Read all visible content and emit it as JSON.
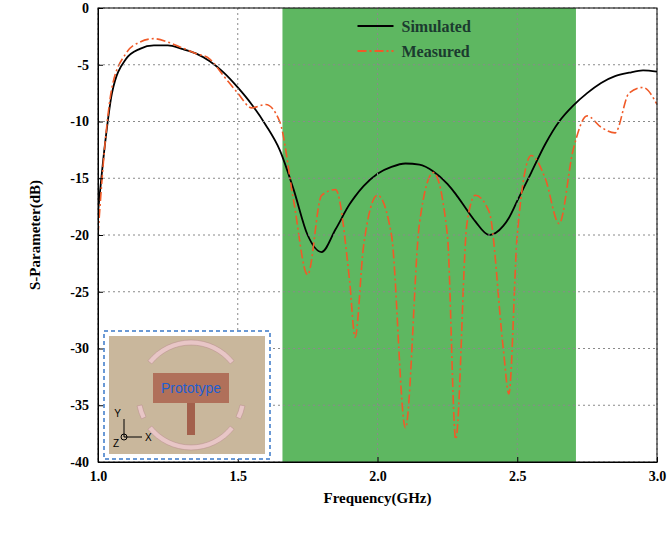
{
  "chart_data": {
    "type": "line",
    "x_label": "Frequency(GHz)",
    "y_label": "S-Parameter(dB)",
    "x": [
      1.0,
      1.025,
      1.05,
      1.1,
      1.15,
      1.2,
      1.25,
      1.3,
      1.35,
      1.4,
      1.45,
      1.5,
      1.55,
      1.6,
      1.65,
      1.7,
      1.75,
      1.8,
      1.85,
      1.9,
      1.92,
      1.95,
      2.0,
      2.05,
      2.1,
      2.15,
      2.2,
      2.25,
      2.28,
      2.32,
      2.35,
      2.4,
      2.45,
      2.47,
      2.5,
      2.55,
      2.6,
      2.65,
      2.7,
      2.75,
      2.8,
      2.85,
      2.9,
      2.95,
      3.0
    ],
    "series": [
      {
        "name": "Simulated",
        "color": "#000000",
        "line_style": "solid",
        "values": [
          -18,
          -12,
          -7.5,
          -4.5,
          -3.6,
          -3.3,
          -3.3,
          -3.6,
          -4.0,
          -4.7,
          -5.7,
          -7.0,
          -8.5,
          -10.3,
          -12.5,
          -16,
          -20,
          -21.5,
          -19.5,
          -17.3,
          -16.6,
          -15.7,
          -14.6,
          -14.0,
          -13.7,
          -13.8,
          -14.4,
          -15.5,
          -16.4,
          -17.8,
          -18.8,
          -20.0,
          -19.2,
          -18.5,
          -17,
          -14.5,
          -12,
          -10,
          -8.6,
          -7.5,
          -6.6,
          -6.0,
          -5.7,
          -5.5,
          -5.6
        ]
      },
      {
        "name": "Measured",
        "color": "#f05a28",
        "line_style": "dashdot",
        "values": [
          -20,
          -12,
          -7,
          -4.0,
          -3.0,
          -2.7,
          -3.0,
          -3.5,
          -4.0,
          -4.5,
          -6.0,
          -7.5,
          -8.8,
          -8.5,
          -10,
          -17,
          -23.5,
          -16.5,
          -16,
          -24,
          -29,
          -21,
          -16.5,
          -20,
          -37,
          -19,
          -14.5,
          -20,
          -38,
          -19,
          -16.5,
          -18,
          -30,
          -34,
          -20,
          -13,
          -15,
          -19,
          -12.5,
          -9.5,
          -10.5,
          -11,
          -7.5,
          -7,
          -8.5
        ]
      }
    ],
    "highlight": [
      1.66,
      2.71
    ],
    "highlight_color": "#4caf50",
    "xlim": [
      1.0,
      3.0
    ],
    "xticks": [
      {
        "value": 1.0,
        "label": "1.0"
      },
      {
        "value": 1.5,
        "label": "1.5"
      },
      {
        "value": 2.0,
        "label": "2.0"
      },
      {
        "value": 2.5,
        "label": "2.5"
      },
      {
        "value": 3.0,
        "label": "3.0"
      }
    ],
    "ylim": [
      -40,
      0
    ],
    "yticks": [
      -40,
      -35,
      -30,
      -25,
      -20,
      -15,
      -10,
      -5,
      0
    ],
    "grid": true,
    "legend": "upper center",
    "inset": {
      "label": "Prototype",
      "axes": [
        "Y",
        "Z",
        "X"
      ]
    }
  }
}
